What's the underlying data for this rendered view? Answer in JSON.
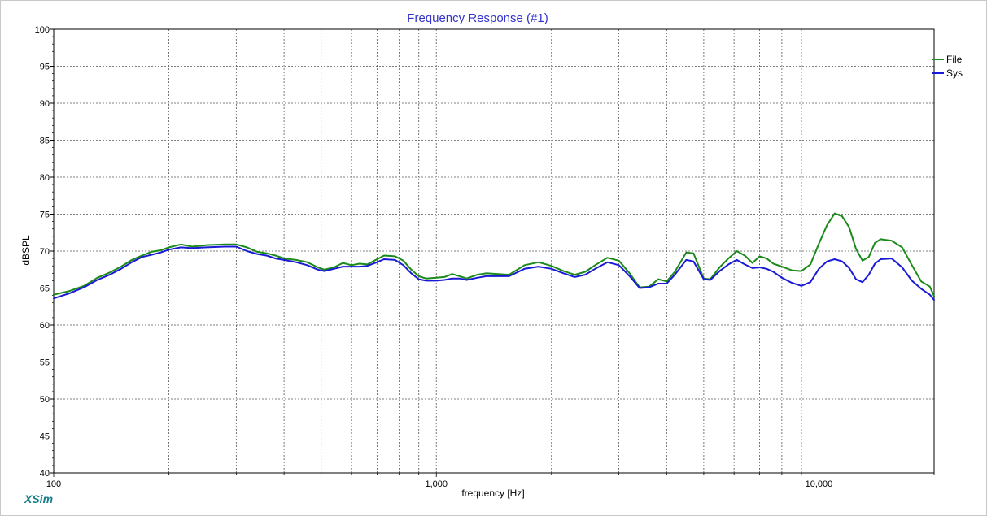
{
  "app": {
    "brand": "XSim"
  },
  "chart_data": {
    "type": "line",
    "title": "Frequency Response (#1)",
    "xlabel": "frequency [Hz]",
    "ylabel": "dBSPL",
    "x_scale": "log",
    "xlim": [
      100,
      20000
    ],
    "ylim": [
      40,
      100
    ],
    "y_ticks": [
      40,
      45,
      50,
      55,
      60,
      65,
      70,
      75,
      80,
      85,
      90,
      95,
      100
    ],
    "x_tick_labels": [
      {
        "value": 100,
        "label": "100"
      },
      {
        "value": 1000,
        "label": "1,000"
      },
      {
        "value": 10000,
        "label": "10,000"
      }
    ],
    "x_gridlines": [
      200,
      300,
      400,
      500,
      600,
      700,
      800,
      900,
      1000,
      2000,
      3000,
      4000,
      5000,
      6000,
      7000,
      8000,
      9000,
      10000
    ],
    "grid": true,
    "legend_position": "top-right",
    "series": [
      {
        "name": "File",
        "color": "#1a8a1a",
        "points": [
          [
            100,
            64.1
          ],
          [
            110,
            64.6
          ],
          [
            120,
            65.3
          ],
          [
            130,
            66.4
          ],
          [
            140,
            67.1
          ],
          [
            150,
            67.9
          ],
          [
            160,
            68.8
          ],
          [
            170,
            69.4
          ],
          [
            180,
            69.9
          ],
          [
            190,
            70.1
          ],
          [
            200,
            70.5
          ],
          [
            215,
            70.9
          ],
          [
            230,
            70.6
          ],
          [
            250,
            70.8
          ],
          [
            280,
            70.9
          ],
          [
            300,
            70.9
          ],
          [
            320,
            70.5
          ],
          [
            340,
            69.9
          ],
          [
            360,
            69.7
          ],
          [
            380,
            69.4
          ],
          [
            400,
            69.0
          ],
          [
            430,
            68.8
          ],
          [
            460,
            68.5
          ],
          [
            490,
            67.8
          ],
          [
            510,
            67.5
          ],
          [
            540,
            67.8
          ],
          [
            570,
            68.4
          ],
          [
            600,
            68.1
          ],
          [
            630,
            68.3
          ],
          [
            660,
            68.2
          ],
          [
            700,
            68.9
          ],
          [
            730,
            69.4
          ],
          [
            780,
            69.3
          ],
          [
            820,
            68.7
          ],
          [
            860,
            67.5
          ],
          [
            900,
            66.6
          ],
          [
            940,
            66.3
          ],
          [
            1000,
            66.4
          ],
          [
            1050,
            66.5
          ],
          [
            1100,
            66.9
          ],
          [
            1150,
            66.6
          ],
          [
            1200,
            66.3
          ],
          [
            1280,
            66.8
          ],
          [
            1350,
            67.0
          ],
          [
            1450,
            66.9
          ],
          [
            1550,
            66.8
          ],
          [
            1700,
            68.1
          ],
          [
            1850,
            68.5
          ],
          [
            2000,
            68.0
          ],
          [
            2150,
            67.3
          ],
          [
            2300,
            66.8
          ],
          [
            2450,
            67.2
          ],
          [
            2600,
            68.1
          ],
          [
            2800,
            69.1
          ],
          [
            3000,
            68.7
          ],
          [
            3200,
            67.0
          ],
          [
            3400,
            65.1
          ],
          [
            3600,
            65.2
          ],
          [
            3800,
            66.2
          ],
          [
            4000,
            65.9
          ],
          [
            4200,
            67.2
          ],
          [
            4500,
            69.8
          ],
          [
            4700,
            69.7
          ],
          [
            5000,
            66.3
          ],
          [
            5200,
            66.2
          ],
          [
            5500,
            67.8
          ],
          [
            5800,
            69.0
          ],
          [
            6100,
            70.0
          ],
          [
            6400,
            69.4
          ],
          [
            6700,
            68.4
          ],
          [
            7000,
            69.3
          ],
          [
            7300,
            69.0
          ],
          [
            7600,
            68.3
          ],
          [
            8000,
            67.9
          ],
          [
            8500,
            67.4
          ],
          [
            9000,
            67.3
          ],
          [
            9500,
            68.2
          ],
          [
            10000,
            71.0
          ],
          [
            10500,
            73.5
          ],
          [
            11000,
            75.1
          ],
          [
            11500,
            74.7
          ],
          [
            12000,
            73.2
          ],
          [
            12500,
            70.3
          ],
          [
            13000,
            68.7
          ],
          [
            13500,
            69.2
          ],
          [
            14000,
            71.1
          ],
          [
            14500,
            71.6
          ],
          [
            15500,
            71.4
          ],
          [
            16500,
            70.5
          ],
          [
            17500,
            68.1
          ],
          [
            18500,
            65.9
          ],
          [
            19500,
            65.2
          ],
          [
            20000,
            63.9
          ]
        ]
      },
      {
        "name": "Sys",
        "color": "#1a1ad6",
        "points": [
          [
            100,
            63.6
          ],
          [
            110,
            64.3
          ],
          [
            120,
            65.1
          ],
          [
            130,
            66.1
          ],
          [
            140,
            66.8
          ],
          [
            150,
            67.6
          ],
          [
            160,
            68.5
          ],
          [
            170,
            69.2
          ],
          [
            180,
            69.5
          ],
          [
            190,
            69.8
          ],
          [
            200,
            70.2
          ],
          [
            215,
            70.5
          ],
          [
            230,
            70.4
          ],
          [
            250,
            70.5
          ],
          [
            280,
            70.6
          ],
          [
            300,
            70.6
          ],
          [
            320,
            70.0
          ],
          [
            340,
            69.6
          ],
          [
            360,
            69.4
          ],
          [
            380,
            69.0
          ],
          [
            400,
            68.8
          ],
          [
            430,
            68.5
          ],
          [
            460,
            68.1
          ],
          [
            490,
            67.5
          ],
          [
            510,
            67.3
          ],
          [
            540,
            67.6
          ],
          [
            570,
            67.9
          ],
          [
            600,
            67.9
          ],
          [
            630,
            67.9
          ],
          [
            660,
            68.0
          ],
          [
            700,
            68.5
          ],
          [
            730,
            68.9
          ],
          [
            780,
            68.8
          ],
          [
            820,
            68.1
          ],
          [
            860,
            67.0
          ],
          [
            900,
            66.2
          ],
          [
            940,
            66.0
          ],
          [
            1000,
            66.0
          ],
          [
            1050,
            66.1
          ],
          [
            1100,
            66.3
          ],
          [
            1150,
            66.3
          ],
          [
            1200,
            66.1
          ],
          [
            1280,
            66.4
          ],
          [
            1350,
            66.6
          ],
          [
            1450,
            66.6
          ],
          [
            1550,
            66.6
          ],
          [
            1700,
            67.6
          ],
          [
            1850,
            67.9
          ],
          [
            2000,
            67.6
          ],
          [
            2150,
            67.0
          ],
          [
            2300,
            66.5
          ],
          [
            2450,
            66.8
          ],
          [
            2600,
            67.6
          ],
          [
            2800,
            68.5
          ],
          [
            3000,
            68.1
          ],
          [
            3200,
            66.6
          ],
          [
            3400,
            65.0
          ],
          [
            3600,
            65.1
          ],
          [
            3800,
            65.6
          ],
          [
            4000,
            65.6
          ],
          [
            4200,
            66.8
          ],
          [
            4500,
            68.8
          ],
          [
            4700,
            68.6
          ],
          [
            5000,
            66.2
          ],
          [
            5200,
            66.1
          ],
          [
            5500,
            67.3
          ],
          [
            5800,
            68.2
          ],
          [
            6100,
            68.8
          ],
          [
            6400,
            68.2
          ],
          [
            6700,
            67.7
          ],
          [
            7000,
            67.8
          ],
          [
            7300,
            67.6
          ],
          [
            7600,
            67.2
          ],
          [
            8000,
            66.4
          ],
          [
            8500,
            65.7
          ],
          [
            9000,
            65.3
          ],
          [
            9500,
            65.8
          ],
          [
            10000,
            67.6
          ],
          [
            10500,
            68.6
          ],
          [
            11000,
            68.9
          ],
          [
            11500,
            68.6
          ],
          [
            12000,
            67.7
          ],
          [
            12500,
            66.2
          ],
          [
            13000,
            65.8
          ],
          [
            13500,
            66.8
          ],
          [
            14000,
            68.3
          ],
          [
            14500,
            68.9
          ],
          [
            15500,
            69.0
          ],
          [
            16500,
            67.8
          ],
          [
            17500,
            66.0
          ],
          [
            18500,
            64.9
          ],
          [
            19500,
            64.1
          ],
          [
            20000,
            63.4
          ]
        ]
      }
    ]
  }
}
